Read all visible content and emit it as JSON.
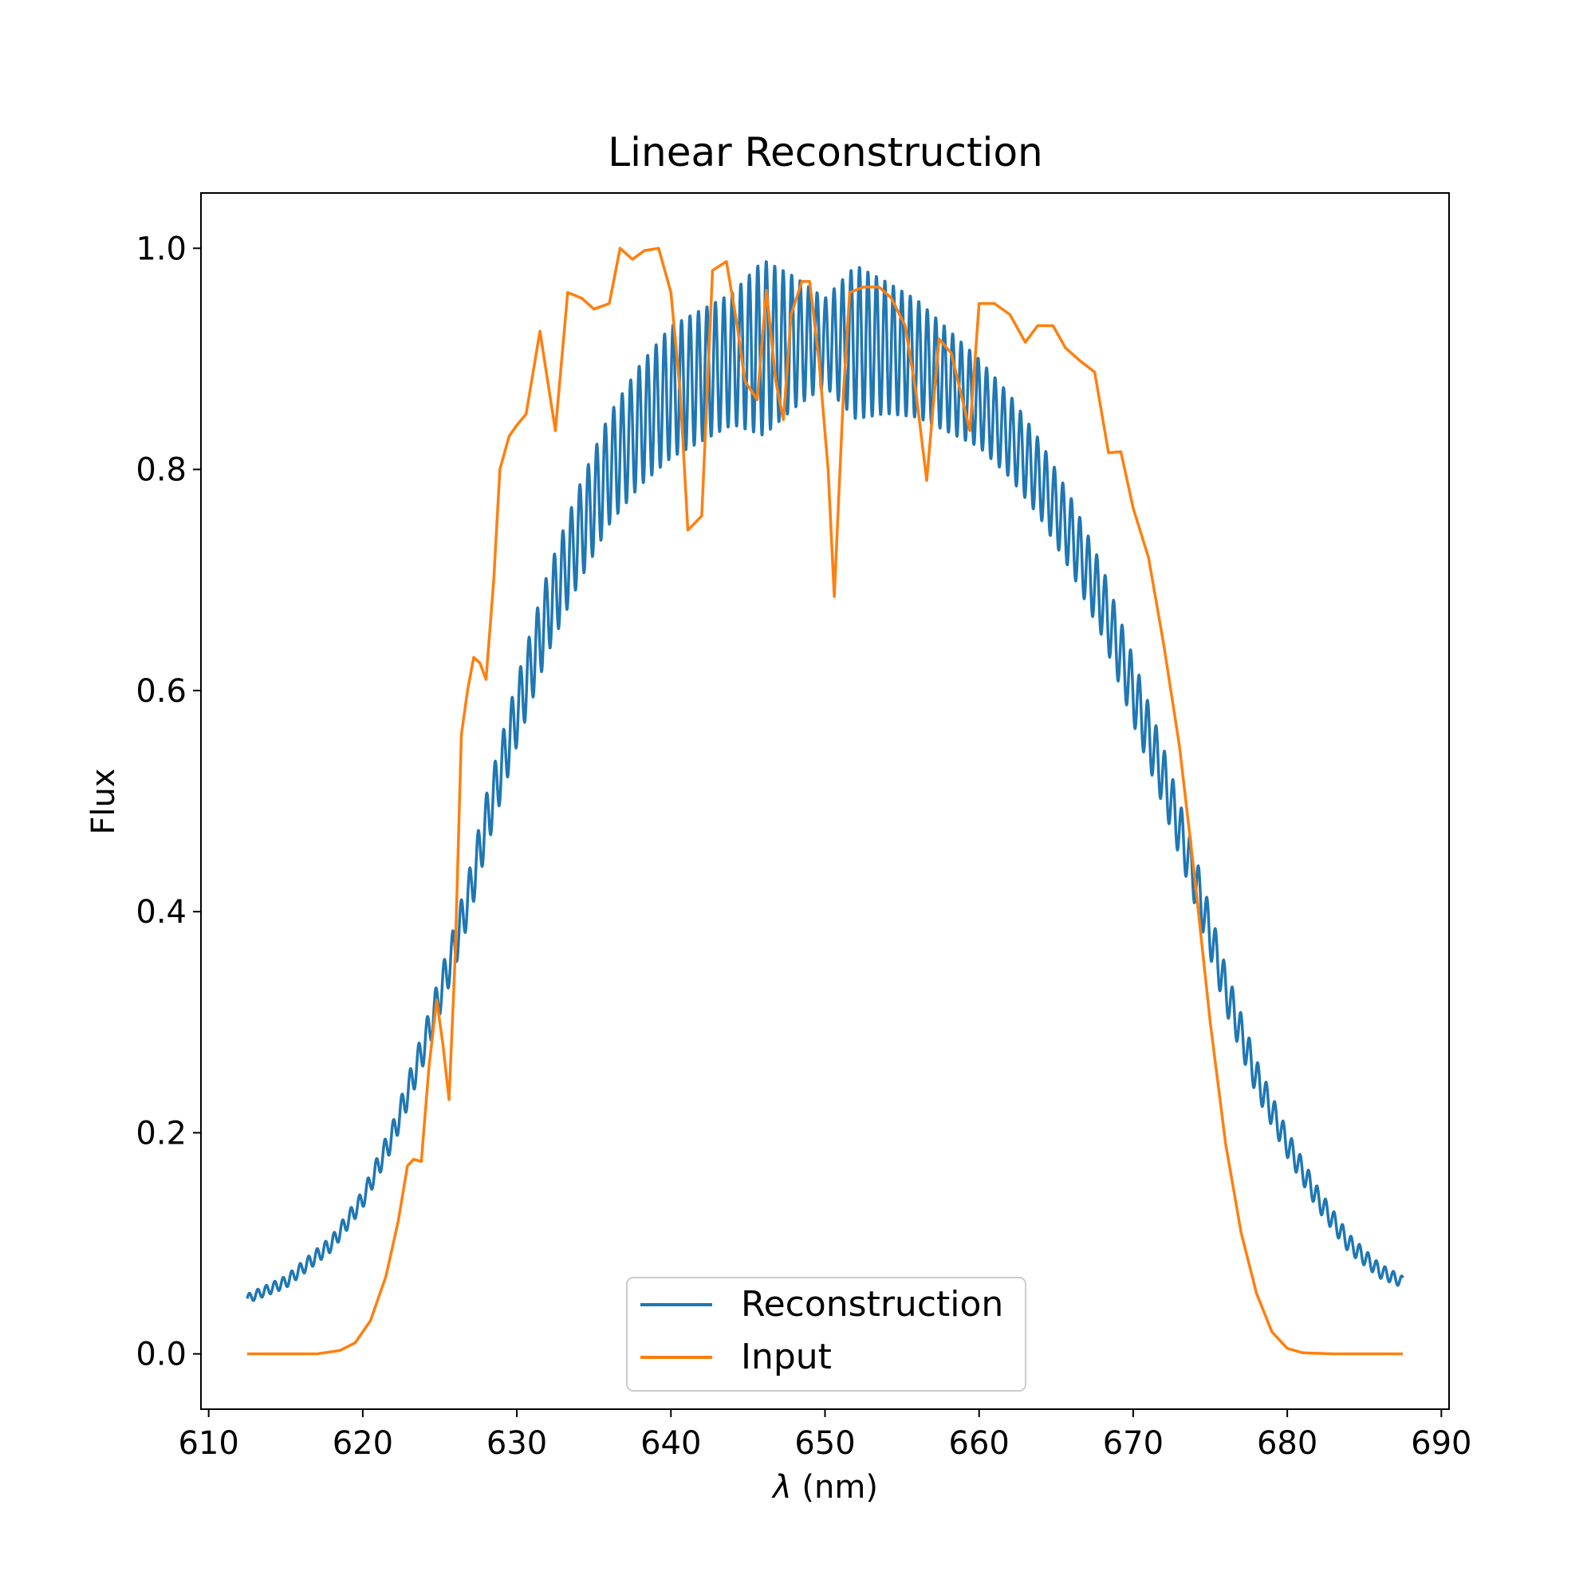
{
  "chart_data": {
    "type": "line",
    "title": "Linear Reconstruction",
    "xlabel_symbol": "λ",
    "xlabel_unit": " (nm)",
    "ylabel": "Flux",
    "xlim": [
      609.5,
      690.5
    ],
    "ylim": [
      -0.05,
      1.05
    ],
    "xticks": [
      610,
      620,
      630,
      640,
      650,
      660,
      670,
      680,
      690
    ],
    "xtick_labels": [
      "610",
      "620",
      "630",
      "640",
      "650",
      "660",
      "670",
      "680",
      "690"
    ],
    "yticks": [
      0.0,
      0.2,
      0.4,
      0.6,
      0.8,
      1.0
    ],
    "ytick_labels": [
      "0.0",
      "0.2",
      "0.4",
      "0.6",
      "0.8",
      "1.0"
    ],
    "legend_position": "lower-center",
    "series": [
      {
        "name": "Reconstruction",
        "color": "#1f77b4",
        "x_range": [
          612.5,
          687.5
        ],
        "ripple_period_nm": 0.55,
        "envelope": [
          [
            612.5,
            0.05
          ],
          [
            615,
            0.065
          ],
          [
            618,
            0.1
          ],
          [
            620,
            0.14
          ],
          [
            622,
            0.2
          ],
          [
            624,
            0.28
          ],
          [
            626,
            0.37
          ],
          [
            627,
            0.42
          ],
          [
            628,
            0.48
          ],
          [
            630,
            0.58
          ],
          [
            632,
            0.67
          ],
          [
            634,
            0.74
          ],
          [
            636,
            0.8
          ],
          [
            638,
            0.84
          ],
          [
            640,
            0.87
          ],
          [
            642,
            0.885
          ],
          [
            644,
            0.9
          ],
          [
            646,
            0.91
          ],
          [
            648,
            0.915
          ],
          [
            650,
            0.915
          ],
          [
            652,
            0.915
          ],
          [
            654,
            0.91
          ],
          [
            656,
            0.9
          ],
          [
            658,
            0.88
          ],
          [
            660,
            0.86
          ],
          [
            662,
            0.83
          ],
          [
            664,
            0.79
          ],
          [
            666,
            0.74
          ],
          [
            668,
            0.68
          ],
          [
            670,
            0.6
          ],
          [
            672,
            0.52
          ],
          [
            674,
            0.43
          ],
          [
            676,
            0.33
          ],
          [
            678,
            0.25
          ],
          [
            680,
            0.19
          ],
          [
            682,
            0.14
          ],
          [
            684,
            0.1
          ],
          [
            686,
            0.075
          ],
          [
            687.5,
            0.065
          ]
        ],
        "amplitude": [
          [
            612.5,
            0.004
          ],
          [
            620,
            0.008
          ],
          [
            626,
            0.02
          ],
          [
            630,
            0.03
          ],
          [
            636,
            0.05
          ],
          [
            640,
            0.06
          ],
          [
            644,
            0.06
          ],
          [
            646,
            0.08
          ],
          [
            648,
            0.06
          ],
          [
            650,
            0.04
          ],
          [
            652,
            0.07
          ],
          [
            654,
            0.06
          ],
          [
            660,
            0.04
          ],
          [
            664,
            0.035
          ],
          [
            670,
            0.03
          ],
          [
            676,
            0.02
          ],
          [
            680,
            0.012
          ],
          [
            687.5,
            0.005
          ]
        ]
      },
      {
        "name": "Input",
        "color": "#ff7f0e",
        "points": [
          [
            612.5,
            0.0
          ],
          [
            617,
            0.0
          ],
          [
            618.5,
            0.003
          ],
          [
            619.5,
            0.01
          ],
          [
            620.5,
            0.03
          ],
          [
            621.5,
            0.07
          ],
          [
            622.3,
            0.12
          ],
          [
            622.9,
            0.17
          ],
          [
            623.3,
            0.176
          ],
          [
            623.8,
            0.174
          ],
          [
            624.3,
            0.26
          ],
          [
            624.8,
            0.32
          ],
          [
            625.2,
            0.28
          ],
          [
            625.6,
            0.23
          ],
          [
            626.0,
            0.36
          ],
          [
            626.4,
            0.56
          ],
          [
            626.8,
            0.6
          ],
          [
            627.2,
            0.63
          ],
          [
            627.6,
            0.625
          ],
          [
            628.0,
            0.61
          ],
          [
            628.5,
            0.7
          ],
          [
            628.9,
            0.8
          ],
          [
            629.5,
            0.83
          ],
          [
            630.0,
            0.84
          ],
          [
            630.6,
            0.85
          ],
          [
            631.5,
            0.925
          ],
          [
            632.5,
            0.835
          ],
          [
            633.3,
            0.96
          ],
          [
            634.2,
            0.955
          ],
          [
            635.0,
            0.945
          ],
          [
            636.0,
            0.95
          ],
          [
            636.7,
            1.0
          ],
          [
            637.5,
            0.99
          ],
          [
            638.3,
            0.998
          ],
          [
            639.2,
            1.0
          ],
          [
            640.0,
            0.96
          ],
          [
            640.6,
            0.87
          ],
          [
            641.1,
            0.745
          ],
          [
            642.0,
            0.758
          ],
          [
            642.7,
            0.98
          ],
          [
            643.6,
            0.988
          ],
          [
            644.3,
            0.93
          ],
          [
            644.8,
            0.88
          ],
          [
            645.6,
            0.863
          ],
          [
            646.2,
            0.962
          ],
          [
            646.8,
            0.88
          ],
          [
            647.3,
            0.845
          ],
          [
            647.8,
            0.94
          ],
          [
            648.5,
            0.97
          ],
          [
            649.0,
            0.97
          ],
          [
            649.6,
            0.9
          ],
          [
            650.2,
            0.8
          ],
          [
            650.6,
            0.685
          ],
          [
            651.2,
            0.87
          ],
          [
            651.6,
            0.96
          ],
          [
            652.5,
            0.965
          ],
          [
            653.5,
            0.965
          ],
          [
            654.3,
            0.955
          ],
          [
            655.2,
            0.93
          ],
          [
            655.9,
            0.87
          ],
          [
            656.6,
            0.79
          ],
          [
            657.4,
            0.918
          ],
          [
            658.2,
            0.905
          ],
          [
            658.8,
            0.87
          ],
          [
            659.4,
            0.835
          ],
          [
            660.0,
            0.95
          ],
          [
            661.0,
            0.95
          ],
          [
            662.0,
            0.94
          ],
          [
            663.0,
            0.915
          ],
          [
            663.8,
            0.93
          ],
          [
            664.8,
            0.93
          ],
          [
            665.6,
            0.91
          ],
          [
            666.4,
            0.9
          ],
          [
            667.5,
            0.888
          ],
          [
            668.4,
            0.815
          ],
          [
            669.2,
            0.816
          ],
          [
            670.0,
            0.765
          ],
          [
            671.0,
            0.72
          ],
          [
            672.0,
            0.64
          ],
          [
            673.0,
            0.55
          ],
          [
            674.0,
            0.43
          ],
          [
            675.0,
            0.3
          ],
          [
            676.0,
            0.19
          ],
          [
            677.0,
            0.11
          ],
          [
            678.0,
            0.055
          ],
          [
            679.0,
            0.02
          ],
          [
            680.0,
            0.005
          ],
          [
            681.0,
            0.001
          ],
          [
            683.0,
            0.0
          ],
          [
            687.5,
            0.0
          ]
        ]
      }
    ]
  }
}
